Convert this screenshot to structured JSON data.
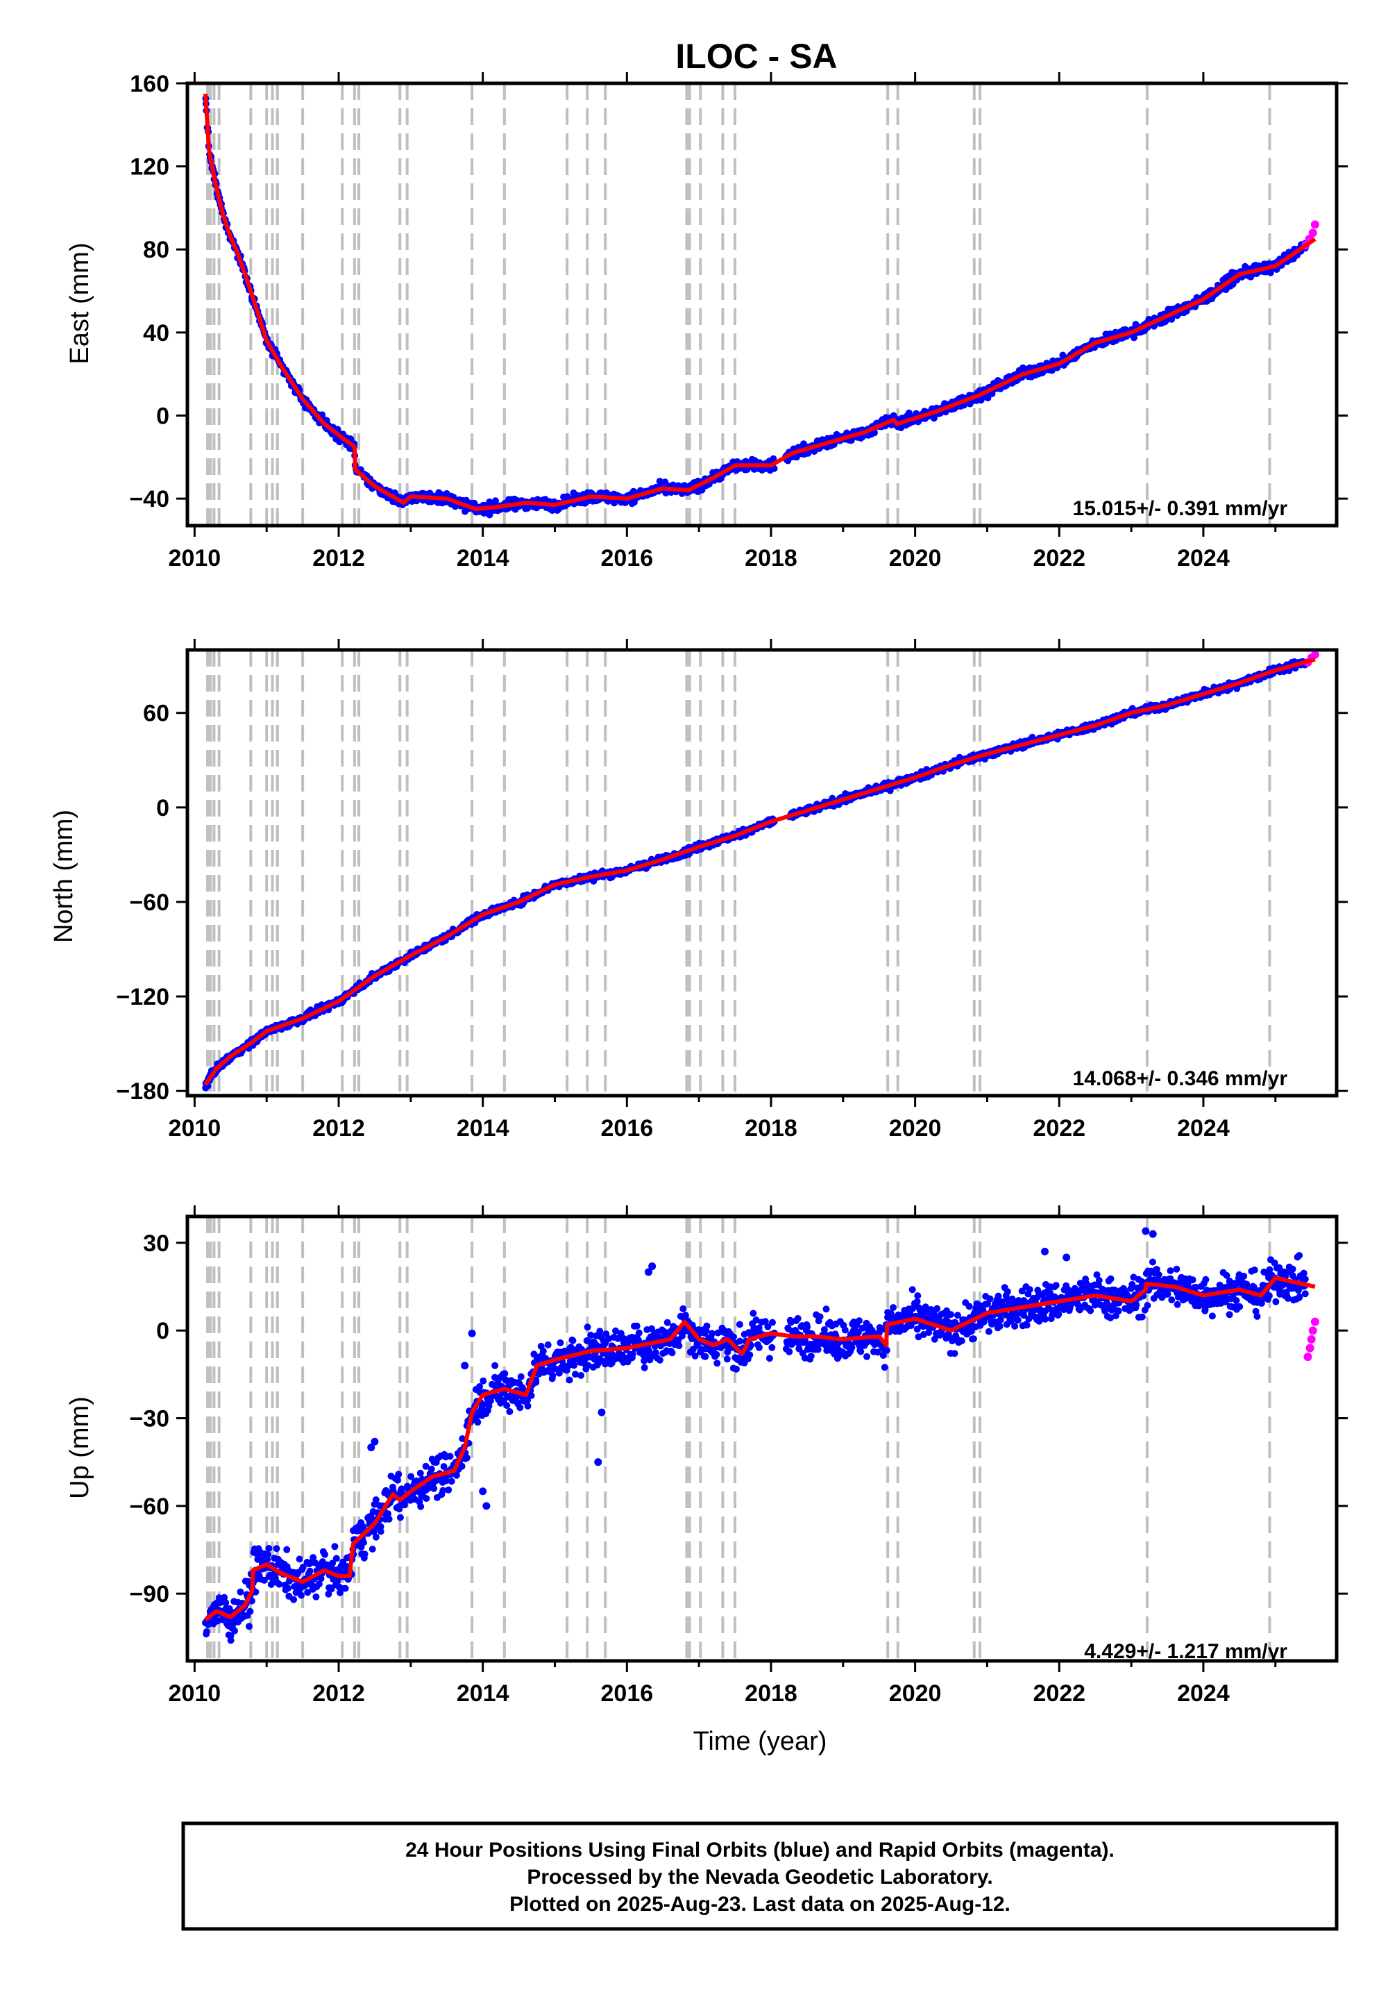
{
  "title": "ILOC - SA",
  "xlabel": "Time (year)",
  "caption": {
    "line1": "24 Hour Positions Using Final Orbits (blue) and Rapid Orbits (magenta).",
    "line2": "Processed by the Nevada Geodetic Laboratory.",
    "line3": "Plotted on 2025-Aug-23. Last data on 2025-Aug-12."
  },
  "colors": {
    "final_orbits": "#0000ff",
    "rapid_orbits": "#ff00ff",
    "model_fit": "#ff0000",
    "event_lines": "#bfbfbf"
  },
  "chart_data": [
    {
      "type": "scatter",
      "component": "east",
      "ylabel": "East (mm)",
      "rate_label": "15.015+/- 0.391 mm/yr",
      "xlim": [
        2009.9,
        2025.85
      ],
      "ylim": [
        -53,
        160
      ],
      "x_ticks": [
        2010,
        2012,
        2014,
        2016,
        2018,
        2020,
        2022,
        2024
      ],
      "y_ticks": [
        -40,
        0,
        40,
        80,
        120,
        160
      ],
      "noise": 1.8,
      "series": [
        {
          "name": "model",
          "x": [
            2010.15,
            2010.2,
            2010.3,
            2010.4,
            2010.5,
            2010.6,
            2010.8,
            2011.0,
            2011.2,
            2011.5,
            2011.8,
            2012.1,
            2012.22,
            2012.23,
            2012.5,
            2012.9,
            2013.0,
            2013.5,
            2013.9,
            2014.2,
            2014.6,
            2015.0,
            2015.5,
            2016.0,
            2016.5,
            2016.85,
            2017.2,
            2017.5,
            2018.0,
            2018.3,
            2018.8,
            2019.3,
            2019.7,
            2019.75,
            2020.3,
            2020.9,
            2021.5,
            2022.0,
            2022.5,
            2023.0,
            2023.5,
            2024.0,
            2024.5,
            2025.0,
            2025.55
          ],
          "y": [
            155,
            128,
            110,
            96,
            86,
            78,
            58,
            36,
            24,
            8,
            -4,
            -12,
            -15,
            -26,
            -34,
            -42,
            -39,
            -40,
            -45,
            -44,
            -42,
            -43,
            -39,
            -40,
            -35,
            -36,
            -30,
            -24,
            -24,
            -18,
            -13,
            -8,
            -2,
            -4,
            2,
            10,
            20,
            25,
            35,
            40,
            48,
            56,
            68,
            72,
            85
          ]
        }
      ],
      "rapid": {
        "x": [
          2025.42,
          2025.47,
          2025.52,
          2025.55
        ],
        "y": [
          82,
          85,
          88,
          92
        ]
      },
      "gaps": [
        [
          2018.05,
          2018.2
        ]
      ]
    },
    {
      "type": "scatter",
      "component": "north",
      "ylabel": "North (mm)",
      "rate_label": "14.068+/- 0.346 mm/yr",
      "xlim": [
        2009.9,
        2025.85
      ],
      "ylim": [
        -183,
        100
      ],
      "x_ticks": [
        2010,
        2012,
        2014,
        2016,
        2018,
        2020,
        2022,
        2024
      ],
      "y_ticks": [
        -180,
        -120,
        -60,
        0,
        60
      ],
      "noise": 1.6,
      "series": [
        {
          "name": "model",
          "x": [
            2010.15,
            2010.3,
            2010.5,
            2010.8,
            2011.0,
            2011.5,
            2012.0,
            2012.5,
            2013.0,
            2013.5,
            2014.0,
            2014.5,
            2015.0,
            2015.5,
            2016.0,
            2016.5,
            2017.0,
            2017.5,
            2018.0,
            2018.5,
            2019.0,
            2019.5,
            2020.0,
            2020.5,
            2021.0,
            2021.5,
            2022.0,
            2022.5,
            2023.0,
            2023.5,
            2024.0,
            2024.5,
            2025.0,
            2025.55
          ],
          "y": [
            -176,
            -166,
            -158,
            -149,
            -142,
            -134,
            -123,
            -107,
            -94,
            -82,
            -68,
            -60,
            -49,
            -44,
            -40,
            -33,
            -25,
            -18,
            -9,
            -2,
            5,
            12,
            19,
            27,
            34,
            40,
            46,
            52,
            60,
            65,
            72,
            79,
            87,
            94
          ]
        }
      ],
      "rapid": {
        "x": [
          2025.45,
          2025.5,
          2025.55
        ],
        "y": [
          92,
          95,
          97
        ]
      },
      "gaps": [
        [
          2018.05,
          2018.25
        ]
      ]
    },
    {
      "type": "scatter",
      "component": "up",
      "ylabel": "Up (mm)",
      "rate_label": "4.429+/- 1.217 mm/yr",
      "xlim": [
        2009.9,
        2025.85
      ],
      "ylim": [
        -113,
        39
      ],
      "x_ticks": [
        2010,
        2012,
        2014,
        2016,
        2018,
        2020,
        2022,
        2024
      ],
      "y_ticks": [
        -90,
        -60,
        -30,
        0,
        30
      ],
      "noise": 4.8,
      "series": [
        {
          "name": "model",
          "x": [
            2010.15,
            2010.3,
            2010.5,
            2010.7,
            2010.8,
            2010.81,
            2011.0,
            2011.2,
            2011.5,
            2011.8,
            2012.0,
            2012.15,
            2012.2,
            2012.5,
            2012.75,
            2012.85,
            2013.0,
            2013.3,
            2013.6,
            2013.75,
            2013.85,
            2014.0,
            2014.3,
            2014.6,
            2014.75,
            2015.0,
            2015.5,
            2016.0,
            2016.4,
            2016.6,
            2016.8,
            2017.0,
            2017.2,
            2017.4,
            2017.6,
            2017.7,
            2018.0,
            2018.3,
            2018.6,
            2019.0,
            2019.5,
            2019.6,
            2019.61,
            2020.0,
            2020.5,
            2021.0,
            2021.5,
            2022.0,
            2022.5,
            2023.0,
            2023.2,
            2023.21,
            2023.6,
            2024.0,
            2024.5,
            2024.8,
            2025.0,
            2025.55
          ],
          "y": [
            -99,
            -96,
            -98,
            -94,
            -89,
            -82,
            -80,
            -83,
            -86,
            -82,
            -84,
            -84,
            -73,
            -66,
            -56,
            -58,
            -55,
            -50,
            -48,
            -40,
            -28,
            -22,
            -20,
            -22,
            -12,
            -10,
            -7,
            -6,
            -4,
            -3,
            3,
            -3,
            -5,
            -3,
            -8,
            -3,
            -1,
            -2,
            -2,
            -3,
            -2,
            -5,
            2,
            4,
            0,
            6,
            8,
            10,
            12,
            10,
            14,
            16,
            15,
            12,
            14,
            12,
            18,
            15
          ]
        }
      ],
      "rapid": {
        "x": [
          2025.45,
          2025.48,
          2025.5,
          2025.52,
          2025.55
        ],
        "y": [
          -9,
          -6,
          -3,
          0,
          3
        ]
      },
      "gaps": [
        [
          2018.05,
          2018.2
        ]
      ],
      "outliers": {
        "x": [
          2012.45,
          2012.5,
          2013.75,
          2013.85,
          2014.0,
          2014.05,
          2015.6,
          2015.65,
          2016.3,
          2016.35,
          2023.2,
          2023.3,
          2021.8,
          2022.1
        ],
        "y": [
          -40,
          -38,
          -12,
          -1,
          -55,
          -60,
          -45,
          -28,
          20,
          22,
          34,
          33,
          27,
          25
        ]
      }
    }
  ],
  "event_lines": [
    2010.18,
    2010.22,
    2010.27,
    2010.34,
    2010.78,
    2011.0,
    2011.08,
    2011.15,
    2011.5,
    2012.05,
    2012.22,
    2012.28,
    2012.85,
    2012.95,
    2013.85,
    2014.3,
    2015.17,
    2015.45,
    2015.7,
    2016.83,
    2016.87,
    2017.02,
    2017.33,
    2017.5,
    2019.62,
    2019.76,
    2020.82,
    2020.9,
    2023.22,
    2024.92
  ]
}
